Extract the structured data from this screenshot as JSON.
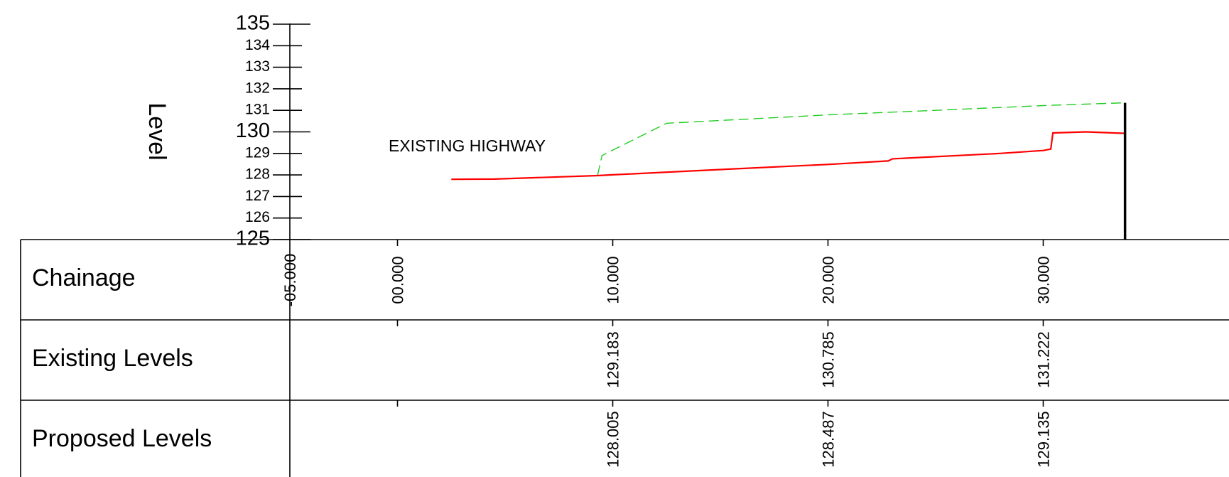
{
  "chart_data": {
    "type": "line",
    "title": "",
    "ylabel": "Level",
    "ylim": [
      125,
      135
    ],
    "yticks": [
      "135",
      "134",
      "133",
      "132",
      "131",
      "130",
      "129",
      "128",
      "127",
      "126",
      "125"
    ],
    "xlim": [
      -5,
      34
    ],
    "xticks": [
      {
        "value": -5,
        "label": "-05.000"
      },
      {
        "value": 0,
        "label": "00.000"
      },
      {
        "value": 10,
        "label": "10.000"
      },
      {
        "value": 20,
        "label": "20.000"
      },
      {
        "value": 30,
        "label": "30.000"
      }
    ],
    "annotation": "EXISTING HIGHWAY",
    "end_marker_x": 33.8,
    "series": [
      {
        "role": "existing",
        "color": "#22cc22",
        "style": "dashed",
        "points": [
          [
            9.3,
            128.0
          ],
          [
            9.5,
            128.9
          ],
          [
            11.0,
            129.65
          ],
          [
            12.5,
            130.4
          ],
          [
            20.0,
            130.79
          ],
          [
            25.0,
            131.0
          ],
          [
            30.0,
            131.22
          ],
          [
            33.8,
            131.35
          ]
        ]
      },
      {
        "role": "proposed",
        "color": "#ff0000",
        "style": "solid",
        "points": [
          [
            2.5,
            127.8
          ],
          [
            4.5,
            127.81
          ],
          [
            9.3,
            127.97
          ],
          [
            10.0,
            128.005
          ],
          [
            15.0,
            128.25
          ],
          [
            20.0,
            128.487
          ],
          [
            22.8,
            128.65
          ],
          [
            23.0,
            128.75
          ],
          [
            28.0,
            129.0
          ],
          [
            30.0,
            129.135
          ],
          [
            30.35,
            129.2
          ],
          [
            30.45,
            129.95
          ],
          [
            32.0,
            130.0
          ],
          [
            33.8,
            129.93
          ]
        ]
      }
    ],
    "table": {
      "rows": [
        {
          "label": "Chainage"
        },
        {
          "label": "Existing Levels",
          "values": [
            {
              "x": 10,
              "label": "129.183"
            },
            {
              "x": 20,
              "label": "130.785"
            },
            {
              "x": 30,
              "label": "131.222"
            }
          ]
        },
        {
          "label": "Proposed Levels",
          "values": [
            {
              "x": 10,
              "label": "128.005"
            },
            {
              "x": 20,
              "label": "128.487"
            },
            {
              "x": 30,
              "label": "129.135"
            }
          ]
        }
      ]
    }
  }
}
